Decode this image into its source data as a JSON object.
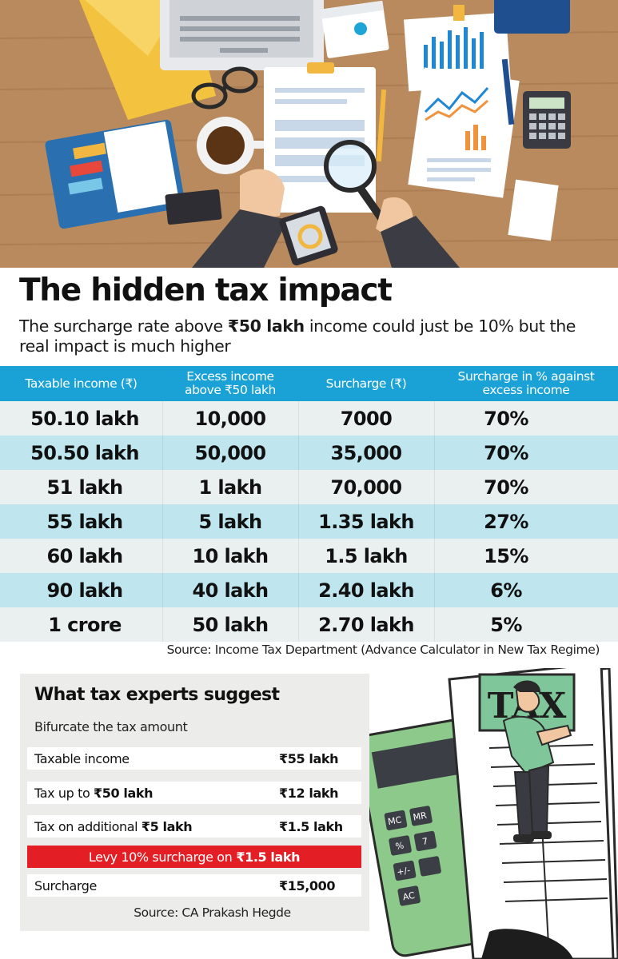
{
  "headline": "The hidden tax impact",
  "subhead": {
    "pre": "The surcharge rate above ",
    "emph": "₹50 lakh",
    "post": " income could just be 10% but the real impact is much higher"
  },
  "table": {
    "header_bg": "#1aa2d6",
    "row_colors": [
      "#eaf0f0",
      "#bfe6ef"
    ],
    "headers": [
      {
        "line1": "Taxable income (₹)",
        "line2": ""
      },
      {
        "line1": "Excess income",
        "line2": "above ₹50 lakh"
      },
      {
        "line1": "Surcharge (₹)",
        "line2": ""
      },
      {
        "line1": "Surcharge in % against",
        "line2": "excess income"
      }
    ],
    "rows": [
      [
        "50.10 lakh",
        "10,000",
        "7000",
        "70%"
      ],
      [
        "50.50 lakh",
        "50,000",
        "35,000",
        "70%"
      ],
      [
        "51 lakh",
        "1 lakh",
        "70,000",
        "70%"
      ],
      [
        "55 lakh",
        "5 lakh",
        "1.35 lakh",
        "27%"
      ],
      [
        "60 lakh",
        "10 lakh",
        "1.5 lakh",
        "15%"
      ],
      [
        "90 lakh",
        "40 lakh",
        "2.40 lakh",
        "6%"
      ],
      [
        "1 crore",
        "50 lakh",
        "2.70 lakh",
        "5%"
      ]
    ],
    "source": "Source: Income Tax Department (Advance Calculator in New Tax Regime)"
  },
  "experts": {
    "title": "What tax experts suggest",
    "subtitle": "Bifurcate the tax amount",
    "rows": [
      {
        "label": "Taxable income",
        "label_bold": "",
        "value": "₹55 lakh"
      },
      {
        "label": "Tax up to ",
        "label_bold": "₹50 lakh",
        "value": "₹12 lakh"
      },
      {
        "label": "Tax on additional ",
        "label_bold": "₹5 lakh",
        "value": "₹1.5 lakh"
      }
    ],
    "levy": {
      "text": "Levy 10% surcharge on",
      "bold": "₹1.5 lakh",
      "color": "#e31e24"
    },
    "surcharge": {
      "label": "Surcharge",
      "value": "₹15,000"
    },
    "source": "Source: CA Prakash Hegde"
  },
  "illustration": {
    "tax_sign": "TAX",
    "calculator_keys": [
      "MC",
      "MR",
      "%",
      "7",
      "+/-",
      "AC"
    ]
  }
}
